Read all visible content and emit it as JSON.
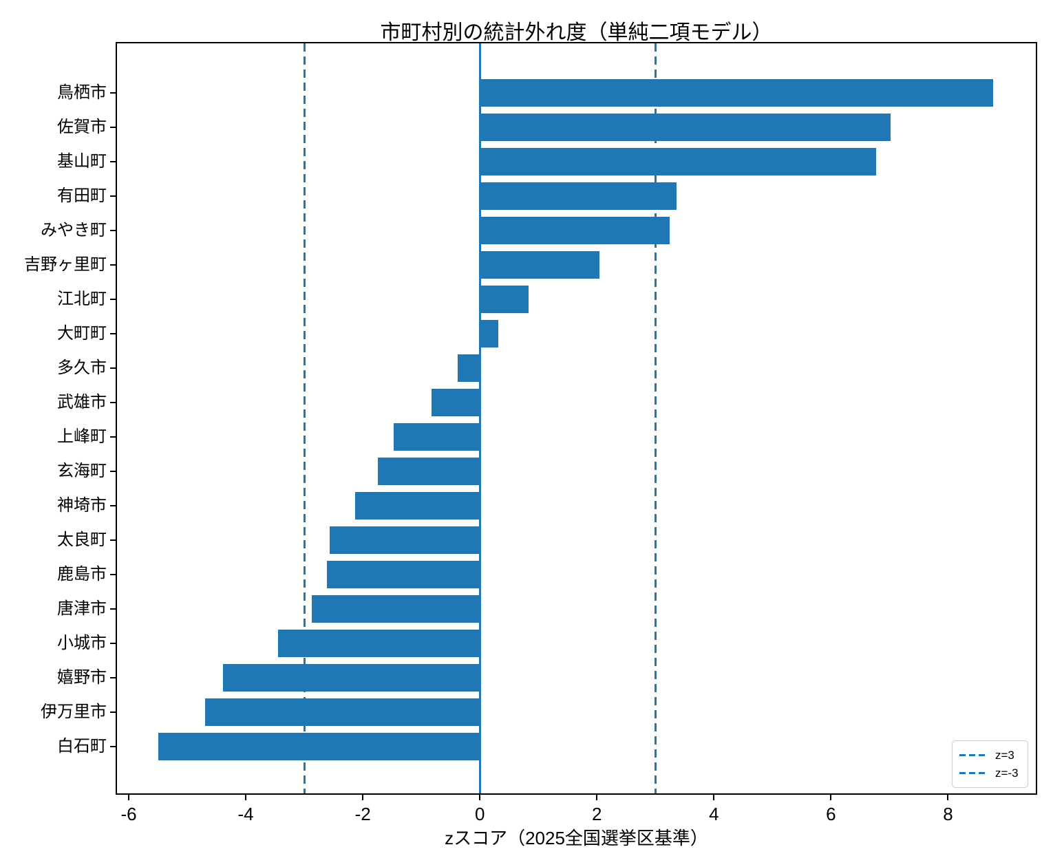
{
  "chart_data": {
    "type": "bar",
    "orientation": "horizontal",
    "title": "市町村別の統計外れ度（単純二項モデル）",
    "xlabel": "zスコア（2025全国選挙区基準）",
    "ylabel": "",
    "categories": [
      "鳥栖市",
      "佐賀市",
      "基山町",
      "有田町",
      "みやき町",
      "吉野ヶ里町",
      "江北町",
      "大町町",
      "多久市",
      "武雄市",
      "上峰町",
      "玄海町",
      "神埼市",
      "太良町",
      "鹿島市",
      "唐津市",
      "小城市",
      "嬉野市",
      "伊万里市",
      "白石町"
    ],
    "values": [
      8.77,
      7.02,
      6.77,
      3.36,
      3.24,
      2.04,
      0.83,
      0.31,
      -0.38,
      -0.82,
      -1.47,
      -1.74,
      -2.13,
      -2.57,
      -2.61,
      -2.87,
      -3.45,
      -4.39,
      -4.7,
      -5.49
    ],
    "xlim": [
      -6.2,
      9.5
    ],
    "xticks": [
      -6,
      -4,
      -2,
      0,
      2,
      4,
      6,
      8
    ],
    "bar_color": "#1f77b4",
    "grid": false,
    "zero_line": {
      "value": 0,
      "style": "solid",
      "color": "#1f77b4"
    },
    "reference_lines": [
      {
        "label": "z=3",
        "value": 3,
        "style": "dashed",
        "color": "#1f77b4"
      },
      {
        "label": "z=-3",
        "value": -3,
        "style": "dashed",
        "color": "#1f77b4"
      }
    ],
    "legend": {
      "position": "lower right"
    }
  }
}
